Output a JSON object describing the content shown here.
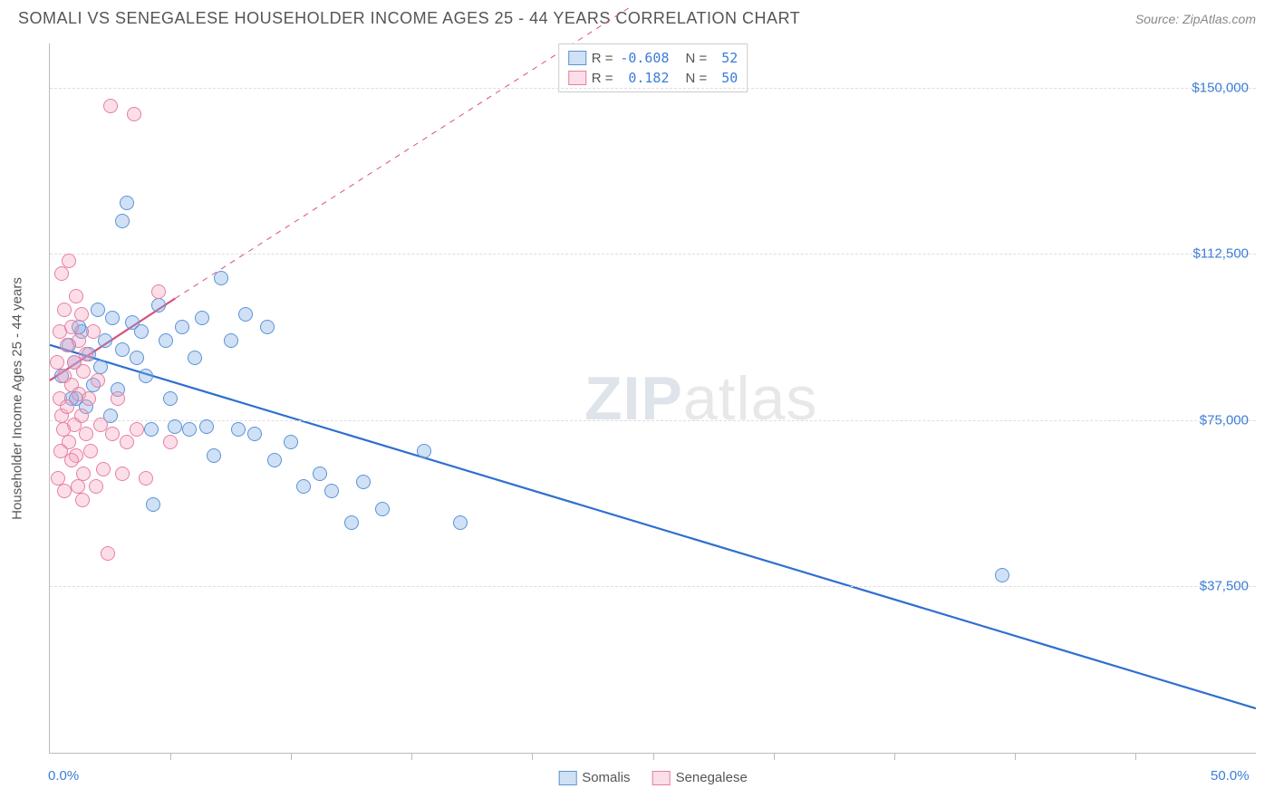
{
  "header": {
    "title": "SOMALI VS SENEGALESE HOUSEHOLDER INCOME AGES 25 - 44 YEARS CORRELATION CHART",
    "source": "Source: ZipAtlas.com"
  },
  "chart": {
    "type": "scatter",
    "y_axis_title": "Householder Income Ages 25 - 44 years",
    "xlim": [
      0,
      50
    ],
    "ylim": [
      0,
      160000
    ],
    "x_ticks_minor": [
      5,
      10,
      15,
      20,
      25,
      30,
      35,
      40,
      45
    ],
    "x_labels": [
      {
        "v": 0,
        "label": "0.0%"
      },
      {
        "v": 50,
        "label": "50.0%"
      }
    ],
    "y_gridlines": [
      {
        "v": 37500,
        "label": "$37,500"
      },
      {
        "v": 75000,
        "label": "$75,000"
      },
      {
        "v": 112500,
        "label": "$112,500"
      },
      {
        "v": 150000,
        "label": "$150,000"
      }
    ],
    "background_color": "#ffffff",
    "grid_color": "#dddddd",
    "axis_color": "#bbbbbb",
    "label_color": "#3b7dd8",
    "text_color": "#555555",
    "marker_radius": 8,
    "marker_border": 1.5,
    "watermark": {
      "bold": "ZIP",
      "rest": "atlas"
    },
    "series": [
      {
        "key": "somalis",
        "name": "Somalis",
        "fill": "rgba(120,170,230,0.35)",
        "stroke": "#5a93d6",
        "line_color": "#2e6fd0",
        "R": "-0.608",
        "N": "52",
        "trend": {
          "x1": 0,
          "y1": 92000,
          "x2": 50,
          "y2": 10000,
          "dash": false,
          "width": 2.2
        },
        "ext": {
          "x1": 0,
          "y1": 92000,
          "x2": 50,
          "y2": 10000,
          "dash": false,
          "width": 2.2
        },
        "points": [
          [
            0.5,
            85000
          ],
          [
            0.8,
            92000
          ],
          [
            1.0,
            88000
          ],
          [
            1.1,
            80000
          ],
          [
            1.3,
            95000
          ],
          [
            1.5,
            78000
          ],
          [
            1.6,
            90000
          ],
          [
            1.8,
            83000
          ],
          [
            2.0,
            100000
          ],
          [
            2.1,
            87000
          ],
          [
            2.3,
            93000
          ],
          [
            2.5,
            76000
          ],
          [
            2.6,
            98000
          ],
          [
            2.8,
            82000
          ],
          [
            3.0,
            91000
          ],
          [
            3.2,
            124000
          ],
          [
            3.4,
            97000
          ],
          [
            3.6,
            89000
          ],
          [
            3.8,
            95000
          ],
          [
            4.0,
            85000
          ],
          [
            4.2,
            73000
          ],
          [
            4.3,
            56000
          ],
          [
            4.5,
            101000
          ],
          [
            4.8,
            93000
          ],
          [
            5.0,
            80000
          ],
          [
            5.2,
            73500
          ],
          [
            5.5,
            96000
          ],
          [
            5.8,
            73000
          ],
          [
            6.0,
            89000
          ],
          [
            6.3,
            98000
          ],
          [
            6.5,
            73500
          ],
          [
            6.8,
            67000
          ],
          [
            7.1,
            107000
          ],
          [
            7.5,
            93000
          ],
          [
            7.8,
            73000
          ],
          [
            8.1,
            99000
          ],
          [
            8.5,
            72000
          ],
          [
            9.0,
            96000
          ],
          [
            9.3,
            66000
          ],
          [
            10.0,
            70000
          ],
          [
            10.5,
            60000
          ],
          [
            11.2,
            63000
          ],
          [
            11.7,
            59000
          ],
          [
            12.5,
            52000
          ],
          [
            13.0,
            61000
          ],
          [
            13.8,
            55000
          ],
          [
            15.5,
            68000
          ],
          [
            17.0,
            52000
          ],
          [
            39.5,
            40000
          ],
          [
            3.0,
            120000
          ],
          [
            1.2,
            96000
          ],
          [
            0.9,
            80000
          ]
        ]
      },
      {
        "key": "senegalese",
        "name": "Senegalese",
        "fill": "rgba(245,160,190,0.35)",
        "stroke": "#e67fa3",
        "line_color": "#d94f7a",
        "R": "0.182",
        "N": "50",
        "trend": {
          "x1": 0,
          "y1": 84000,
          "x2": 5.2,
          "y2": 102500,
          "dash": false,
          "width": 2.2
        },
        "ext": {
          "x1": 5.2,
          "y1": 102500,
          "x2": 24,
          "y2": 168000,
          "dash": true,
          "width": 1
        },
        "points": [
          [
            0.3,
            88000
          ],
          [
            0.4,
            95000
          ],
          [
            0.4,
            80000
          ],
          [
            0.5,
            108000
          ],
          [
            0.5,
            76000
          ],
          [
            0.6,
            85000
          ],
          [
            0.6,
            100000
          ],
          [
            0.7,
            78000
          ],
          [
            0.7,
            92000
          ],
          [
            0.8,
            70000
          ],
          [
            0.8,
            111000
          ],
          [
            0.9,
            83000
          ],
          [
            0.9,
            96000
          ],
          [
            1.0,
            74000
          ],
          [
            1.0,
            88000
          ],
          [
            1.1,
            103000
          ],
          [
            1.1,
            67000
          ],
          [
            1.2,
            81000
          ],
          [
            1.2,
            93000
          ],
          [
            1.3,
            76000
          ],
          [
            1.3,
            99000
          ],
          [
            1.4,
            63000
          ],
          [
            1.4,
            86000
          ],
          [
            1.5,
            72000
          ],
          [
            1.5,
            90000
          ],
          [
            1.6,
            80000
          ],
          [
            1.7,
            68000
          ],
          [
            1.8,
            95000
          ],
          [
            1.9,
            60000
          ],
          [
            2.0,
            84000
          ],
          [
            2.1,
            74000
          ],
          [
            2.2,
            64000
          ],
          [
            2.4,
            45000
          ],
          [
            2.5,
            146000
          ],
          [
            2.6,
            72000
          ],
          [
            2.8,
            80000
          ],
          [
            3.0,
            63000
          ],
          [
            3.2,
            70000
          ],
          [
            3.5,
            144000
          ],
          [
            3.6,
            73000
          ],
          [
            4.0,
            62000
          ],
          [
            4.5,
            104000
          ],
          [
            5.0,
            70000
          ],
          [
            0.35,
            62000
          ],
          [
            0.45,
            68000
          ],
          [
            0.55,
            73000
          ],
          [
            0.6,
            59000
          ],
          [
            0.9,
            66000
          ],
          [
            1.15,
            60000
          ],
          [
            1.35,
            57000
          ]
        ]
      }
    ],
    "legend_bottom": [
      {
        "series": "somalis"
      },
      {
        "series": "senegalese"
      }
    ]
  }
}
